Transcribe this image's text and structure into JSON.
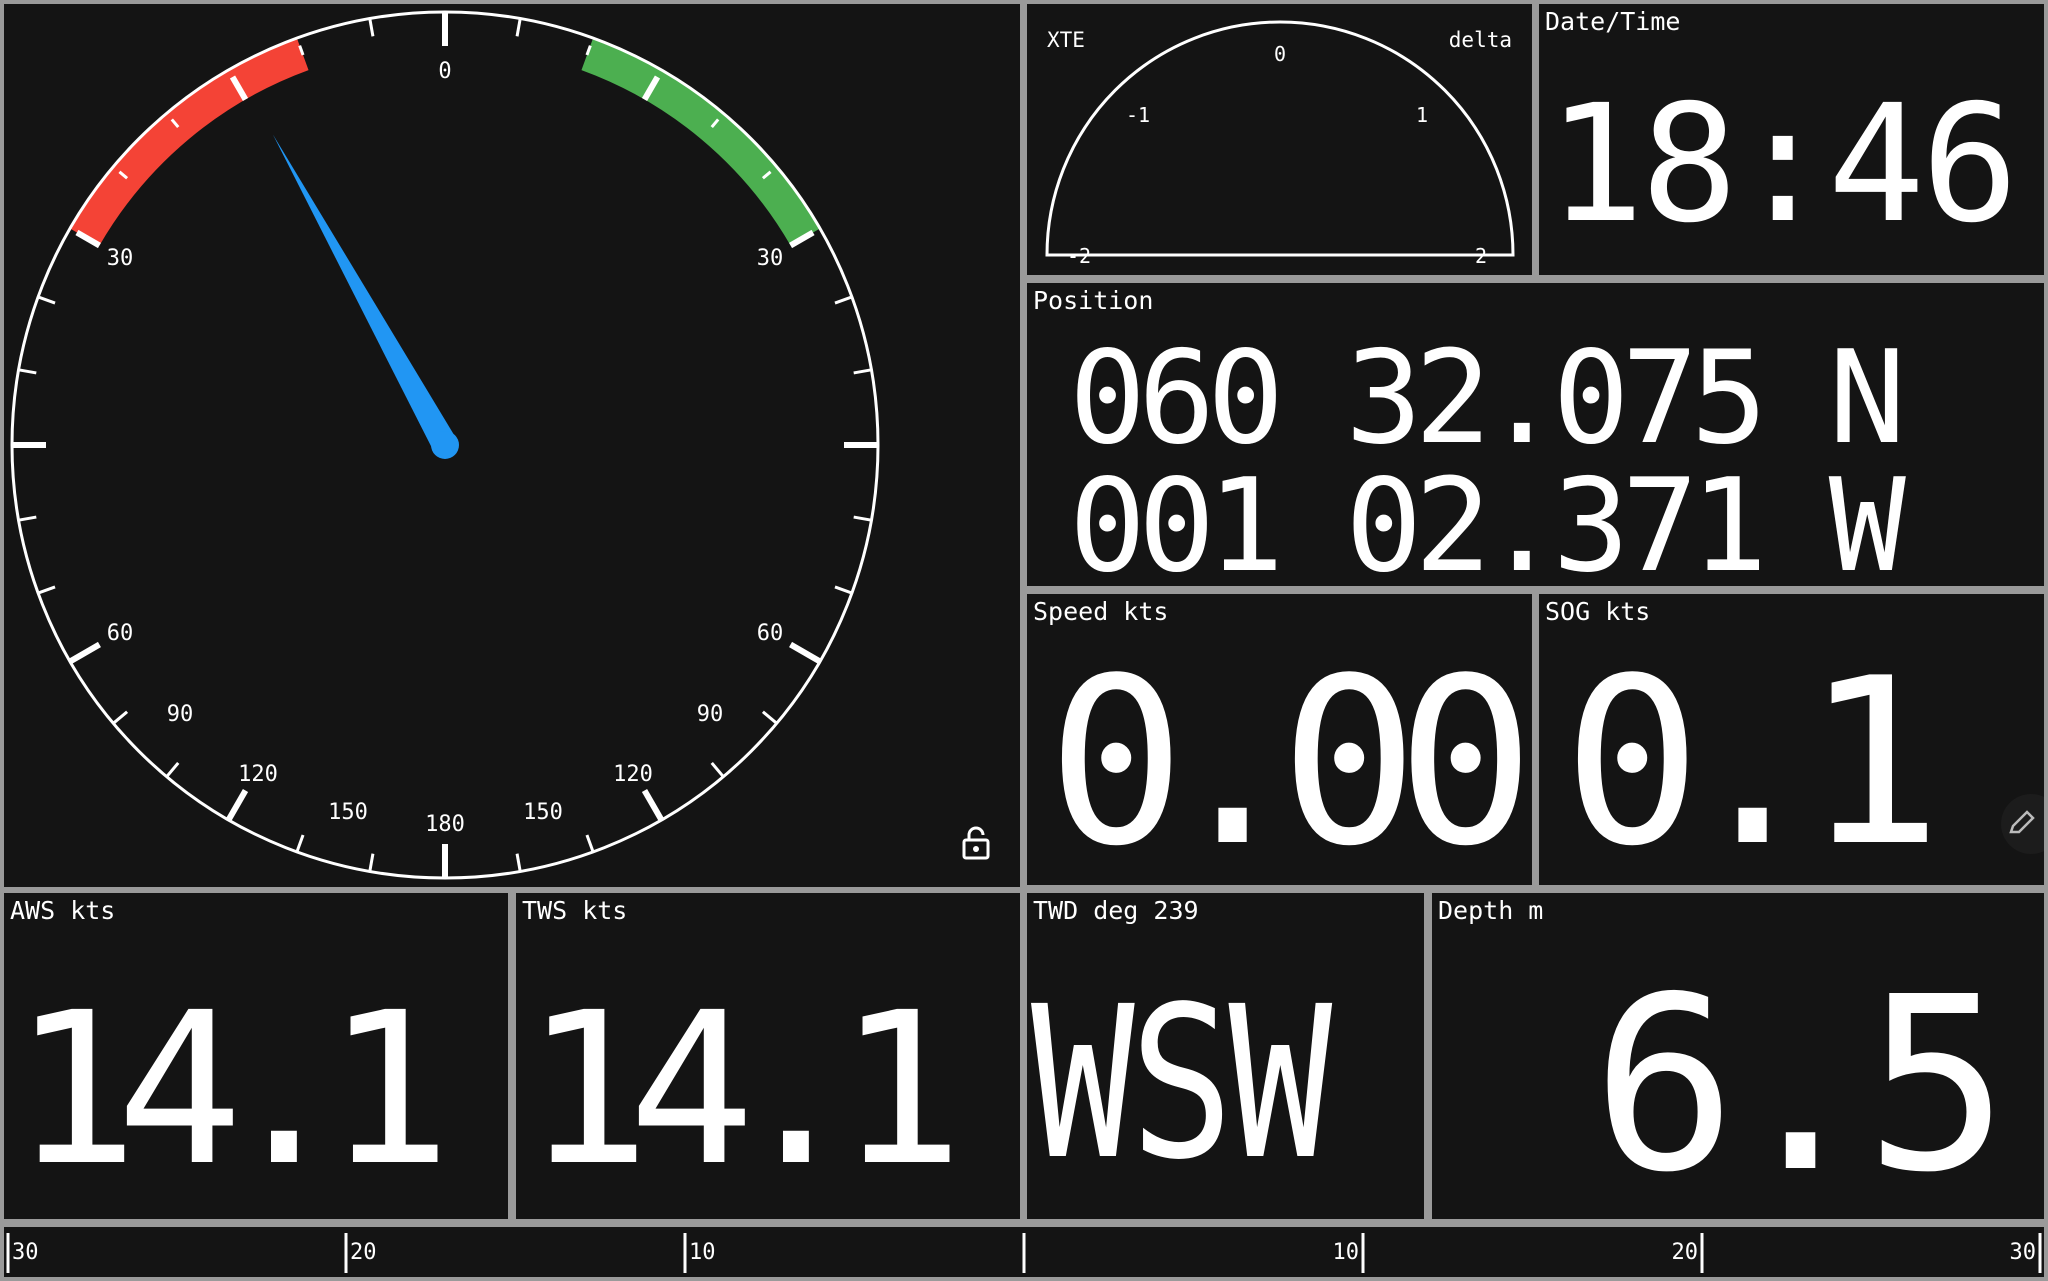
{
  "colors": {
    "background": "#141414",
    "border": "#9a9a9a",
    "text": "#ffffff",
    "port_arc": "#f44336",
    "starboard_arc": "#4caf50",
    "needle": "#2196f3"
  },
  "wind_gauge": {
    "tick_labels": {
      "top": "0",
      "port_30": "30",
      "starboard_30": "30",
      "port_60": "60",
      "starboard_60": "60",
      "port_90": "90",
      "starboard_90": "90",
      "port_120": "120",
      "starboard_120": "120",
      "port_150": "150",
      "starboard_150": "150",
      "bottom": "180"
    },
    "needle_angle_deg": -29,
    "port_arc_range_deg": [
      -60,
      -20
    ],
    "starboard_arc_range_deg": [
      20,
      60
    ],
    "lock_icon": "lock-open-icon"
  },
  "xte": {
    "label": "XTE",
    "mode_label": "delta",
    "scale_labels": {
      "center": "0",
      "left_1": "-1",
      "right_1": "1",
      "left_2": "-2",
      "right_2": "2"
    }
  },
  "datetime": {
    "label": "Date/Time",
    "value": "18:46"
  },
  "position": {
    "label": "Position",
    "lat": "060 32.075 N",
    "lon": "001 02.371 W"
  },
  "speed": {
    "label": "Speed kts",
    "value": "0.00"
  },
  "sog": {
    "label": "SOG kts",
    "value": "0.1",
    "edit_icon": "pencil-icon"
  },
  "aws": {
    "label": "AWS kts",
    "value": "14.1"
  },
  "tws": {
    "label": "TWS kts",
    "value": "14.1"
  },
  "twd": {
    "label": "TWD deg 239",
    "value": "WSW"
  },
  "depth": {
    "label": "Depth m",
    "value": "6.5"
  },
  "bottom_scale": {
    "labels": [
      "30",
      "20",
      "10",
      "",
      "10",
      "20",
      "30"
    ]
  }
}
